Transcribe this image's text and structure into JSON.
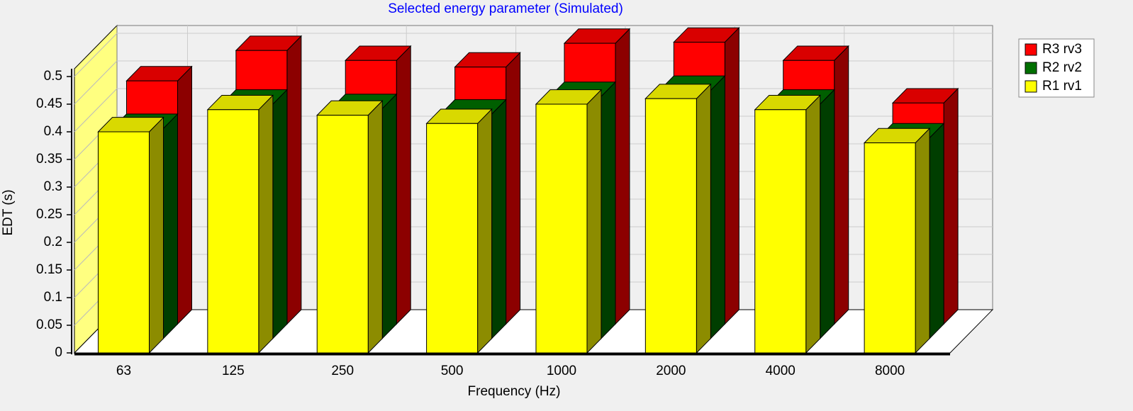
{
  "chart_data": {
    "type": "bar3d",
    "title": "Selected energy parameter (Simulated)",
    "x_label": "Frequency (Hz)",
    "y_label": "EDT (s)",
    "categories": [
      "63",
      "125",
      "250",
      "500",
      "1000",
      "2000",
      "4000",
      "8000"
    ],
    "series": [
      {
        "name": "R1 rv1",
        "color": "#ffff00",
        "values": [
          0.4,
          0.44,
          0.43,
          0.415,
          0.45,
          0.46,
          0.44,
          0.38
        ]
      },
      {
        "name": "R2 rv2",
        "color": "#007000",
        "values": [
          0.38,
          0.424,
          0.416,
          0.406,
          0.438,
          0.449,
          0.424,
          0.363
        ]
      },
      {
        "name": "R3 rv3",
        "color": "#ff0000",
        "values": [
          0.44,
          0.495,
          0.477,
          0.465,
          0.508,
          0.51,
          0.477,
          0.4
        ]
      }
    ],
    "ylim": [
      0,
      0.5
    ],
    "yticks": [
      0,
      0.05,
      0.1,
      0.15,
      0.2,
      0.25,
      0.3,
      0.35,
      0.4,
      0.45,
      0.5
    ],
    "grid": true,
    "legend": "right",
    "title_color": "#0000ff"
  }
}
